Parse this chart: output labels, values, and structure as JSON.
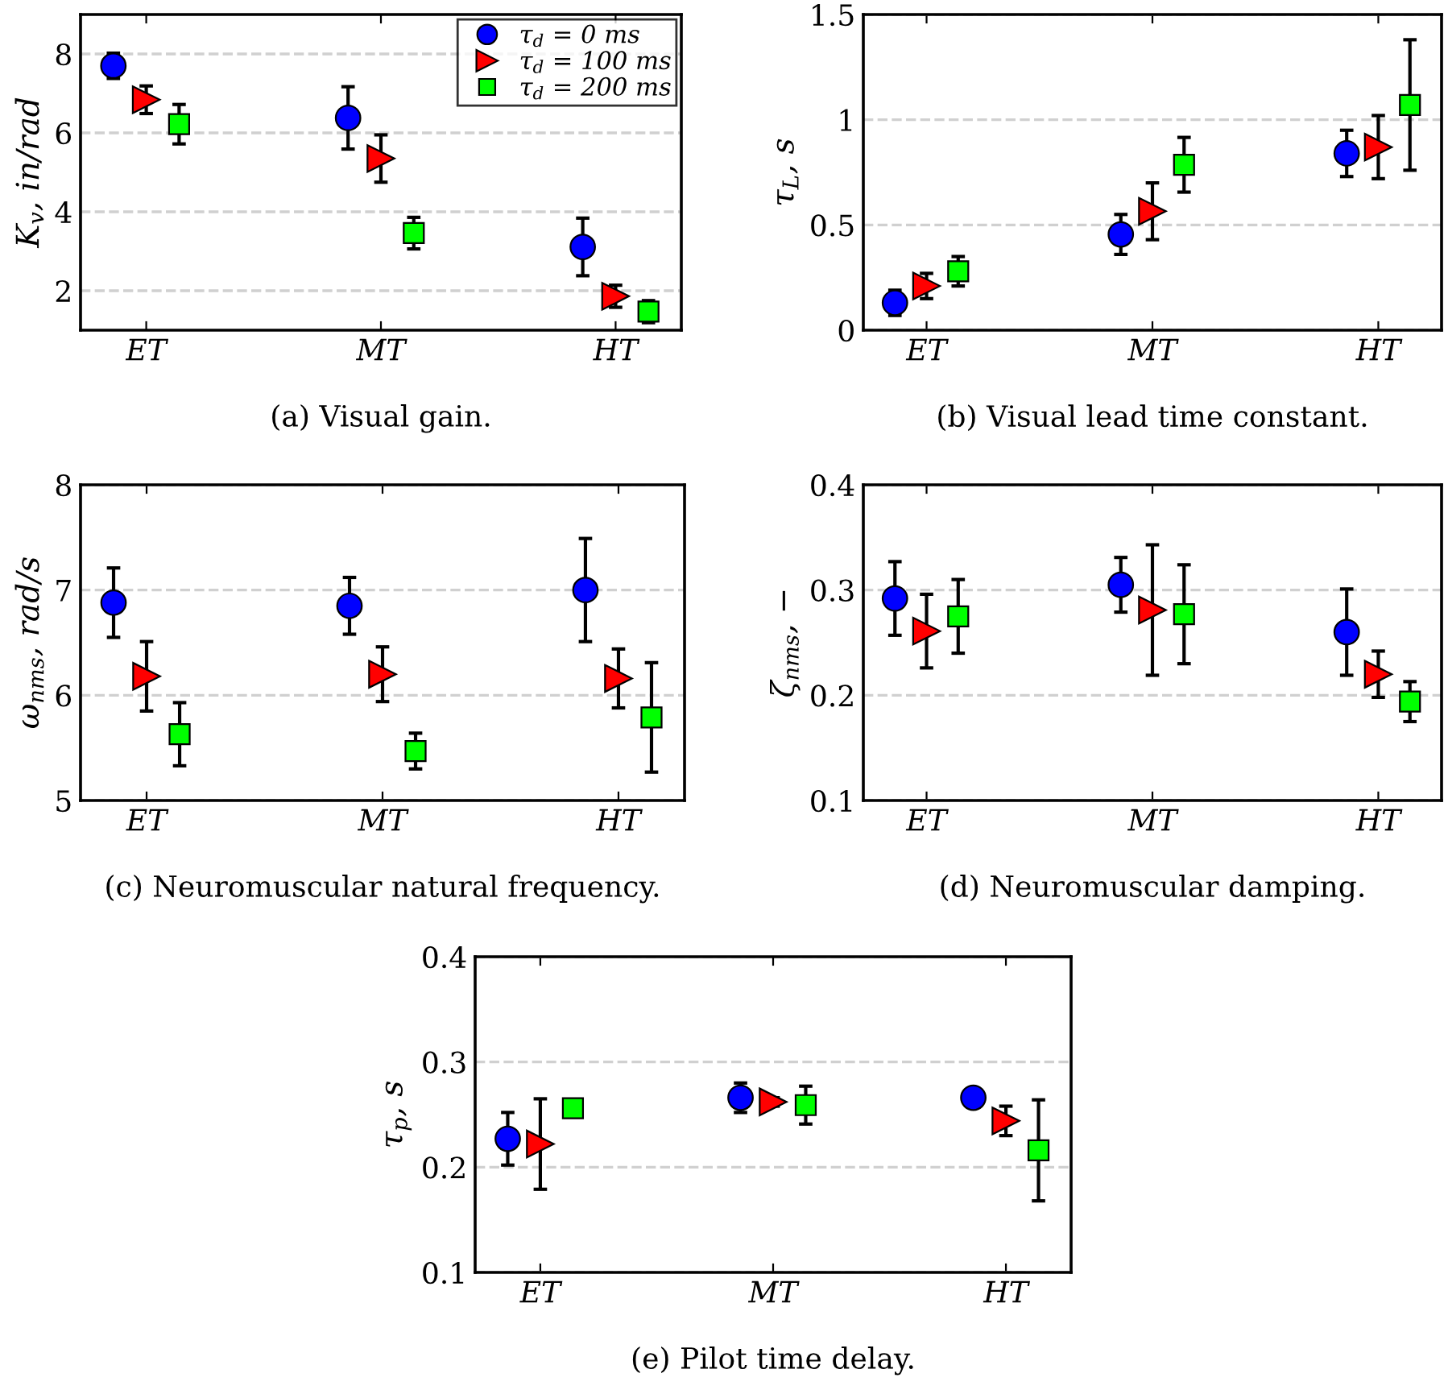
{
  "chart_data": [
    {
      "type": "scatter",
      "title": "(a) Visual gain.",
      "ylabel": "K$_{v}$, in/rad",
      "categories": [
        "ET",
        "MT",
        "HT"
      ],
      "ylim": [
        1,
        9
      ],
      "yticks": [
        2,
        4,
        6,
        8
      ],
      "grid": "y",
      "legend": "top right",
      "series": [
        {
          "name": "τ$_{d}$ = 0 ms",
          "color": "#0000ff",
          "marker": "circle",
          "values": [
            7.7,
            6.38,
            3.11
          ],
          "errors": [
            0.32,
            0.79,
            0.73
          ]
        },
        {
          "name": "τ$_{d}$ = 100 ms",
          "color": "#ff0000",
          "marker": "triangle",
          "values": [
            6.84,
            5.35,
            1.86
          ],
          "errors": [
            0.35,
            0.6,
            0.28
          ]
        },
        {
          "name": "τ$_{d}$ = 200 ms",
          "color": "#00ff00",
          "marker": "square",
          "values": [
            6.22,
            3.46,
            1.47
          ],
          "errors": [
            0.5,
            0.4,
            0.28
          ]
        }
      ]
    },
    {
      "type": "scatter",
      "title": "(b) Visual lead time constant.",
      "ylabel": "τ$_{L}$, s",
      "categories": [
        "ET",
        "MT",
        "HT"
      ],
      "ylim": [
        0,
        1.5
      ],
      "yticks": [
        0,
        0.5,
        1,
        1.5
      ],
      "grid": "y",
      "series": [
        {
          "color": "#0000ff",
          "marker": "circle",
          "values": [
            0.13,
            0.455,
            0.84
          ],
          "errors": [
            0.06,
            0.095,
            0.11
          ]
        },
        {
          "color": "#ff0000",
          "marker": "triangle",
          "values": [
            0.21,
            0.565,
            0.87
          ],
          "errors": [
            0.06,
            0.135,
            0.15
          ]
        },
        {
          "color": "#00ff00",
          "marker": "square",
          "values": [
            0.28,
            0.786,
            1.07
          ],
          "errors": [
            0.07,
            0.13,
            0.31
          ]
        }
      ]
    },
    {
      "type": "scatter",
      "title": "(c) Neuromuscular natural frequency.",
      "ylabel": "ω$_{nms}$, rad/s",
      "categories": [
        "ET",
        "MT",
        "HT"
      ],
      "ylim": [
        5,
        8
      ],
      "yticks": [
        5,
        6,
        7,
        8
      ],
      "grid": "y",
      "series": [
        {
          "color": "#0000ff",
          "marker": "circle",
          "values": [
            6.88,
            6.85,
            7.0
          ],
          "errors": [
            0.33,
            0.27,
            0.49
          ]
        },
        {
          "color": "#ff0000",
          "marker": "triangle",
          "values": [
            6.18,
            6.2,
            6.16
          ],
          "errors": [
            0.33,
            0.26,
            0.28
          ]
        },
        {
          "color": "#00ff00",
          "marker": "square",
          "values": [
            5.63,
            5.47,
            5.79
          ],
          "errors": [
            0.3,
            0.17,
            0.52
          ]
        }
      ]
    },
    {
      "type": "scatter",
      "title": "(d) Neuromuscular damping.",
      "ylabel": "ζ$_{nms}$, −",
      "categories": [
        "ET",
        "MT",
        "HT"
      ],
      "ylim": [
        0.1,
        0.4
      ],
      "yticks": [
        0.1,
        0.2,
        0.3,
        0.4
      ],
      "grid": "y",
      "series": [
        {
          "color": "#0000ff",
          "marker": "circle",
          "values": [
            0.292,
            0.305,
            0.26
          ],
          "errors": [
            0.035,
            0.026,
            0.041
          ]
        },
        {
          "color": "#ff0000",
          "marker": "triangle",
          "values": [
            0.261,
            0.281,
            0.22
          ],
          "errors": [
            0.035,
            0.062,
            0.022
          ]
        },
        {
          "color": "#00ff00",
          "marker": "square",
          "values": [
            0.275,
            0.277,
            0.194
          ],
          "errors": [
            0.035,
            0.047,
            0.019
          ]
        }
      ]
    },
    {
      "type": "scatter",
      "title": "(e) Pilot time delay.",
      "ylabel": "τ$_{p}$, s",
      "categories": [
        "ET",
        "MT",
        "HT"
      ],
      "ylim": [
        0.1,
        0.4
      ],
      "yticks": [
        0.1,
        0.2,
        0.3,
        0.4
      ],
      "grid": "y",
      "series": [
        {
          "color": "#0000ff",
          "marker": "circle",
          "values": [
            0.227,
            0.266,
            0.266
          ],
          "errors": [
            0.025,
            0.014,
            null
          ]
        },
        {
          "color": "#ff0000",
          "marker": "triangle",
          "values": [
            0.222,
            0.262,
            0.244
          ],
          "errors": [
            0.043,
            0.004,
            0.014
          ]
        },
        {
          "color": "#00ff00",
          "marker": "square",
          "values": [
            0.256,
            0.259,
            0.216
          ],
          "errors": [
            0.006,
            0.018,
            0.048
          ]
        }
      ]
    }
  ]
}
